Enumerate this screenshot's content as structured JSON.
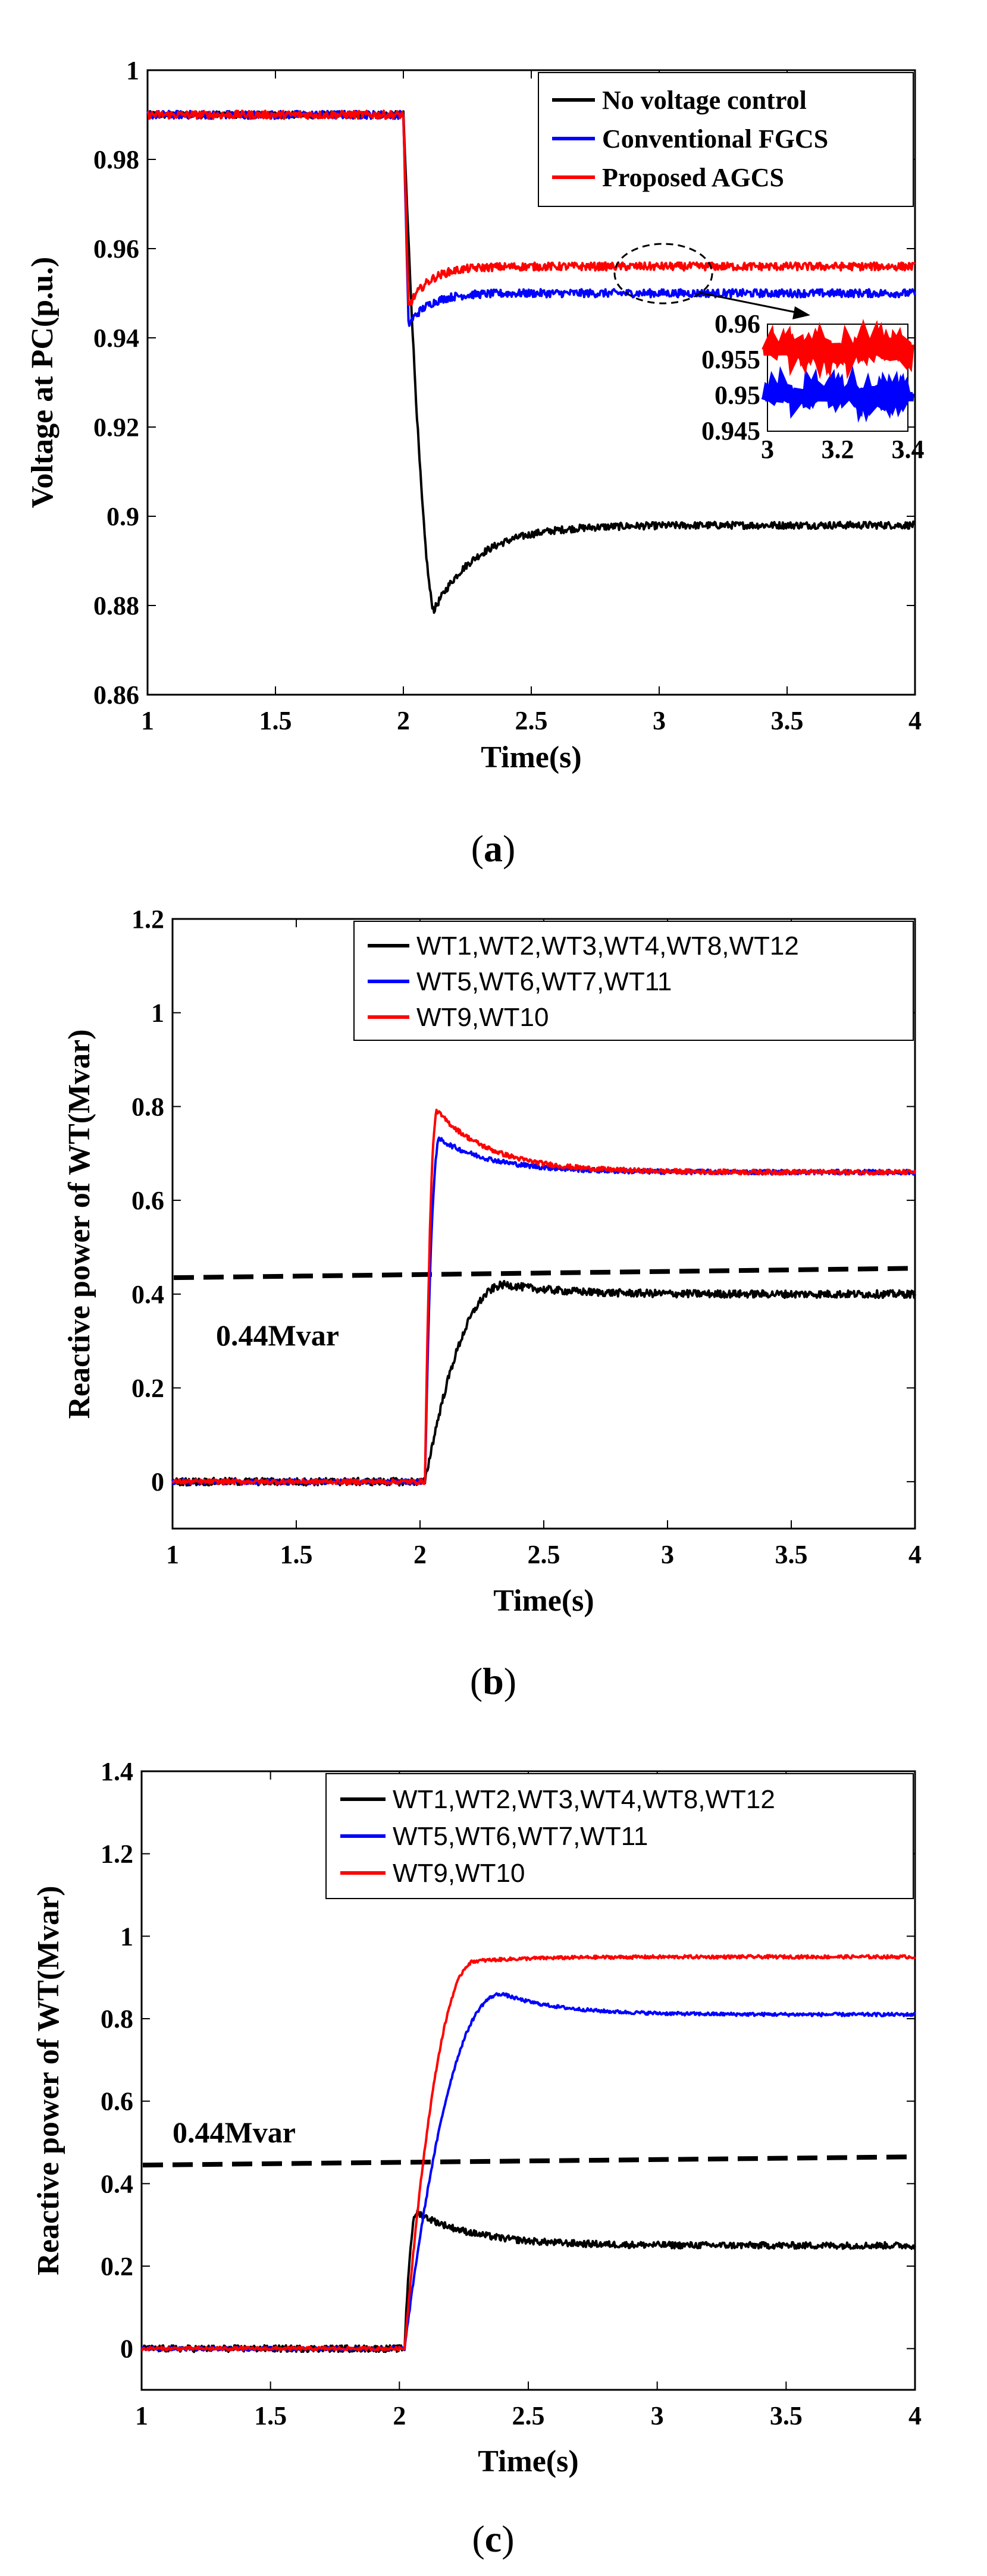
{
  "chart_data": [
    {
      "type": "line",
      "panel": "(a)",
      "caption_open": "(",
      "caption_letter": "a",
      "caption_close": ")",
      "title": "",
      "xlabel": "Time(s)",
      "ylabel": "Voltage at PC(p.u.)",
      "xlim": [
        1,
        4
      ],
      "ylim": [
        0.86,
        1.0
      ],
      "xticks": [
        1,
        1.5,
        2,
        2.5,
        3,
        3.5,
        4
      ],
      "xtick_labels": [
        "1",
        "1.5",
        "2",
        "2.5",
        "3",
        "3.5",
        "4"
      ],
      "yticks": [
        0.86,
        0.88,
        0.9,
        0.92,
        0.94,
        0.96,
        0.98,
        1.0
      ],
      "ytick_labels": [
        "0.86",
        "0.88",
        "0.9",
        "0.92",
        "0.94",
        "0.96",
        "0.98",
        "1"
      ],
      "legend_position": "top-right",
      "series": [
        {
          "name": "No voltage control",
          "color": "#000000",
          "shape": "dip",
          "pre": 0.99,
          "min": 0.879,
          "t_min": 2.12,
          "final": 0.898,
          "noise": 0.0008
        },
        {
          "name": "Conventional FGCS",
          "color": "#0000ff",
          "shape": "step",
          "pre": 0.99,
          "start": 0.943,
          "final": 0.95,
          "noise": 0.0009
        },
        {
          "name": "Proposed AGCS",
          "color": "#ff0000",
          "shape": "step",
          "pre": 0.99,
          "start": 0.947,
          "final": 0.956,
          "noise": 0.0009
        }
      ],
      "inset": {
        "xlim": [
          3,
          3.4
        ],
        "ylim": [
          0.945,
          0.96
        ],
        "xticks": [
          3,
          3.2,
          3.4
        ],
        "xtick_labels": [
          "3",
          "3.2",
          "3.4"
        ],
        "yticks": [
          0.945,
          0.95,
          0.955,
          0.96
        ],
        "ytick_labels": [
          "0.945",
          "0.95",
          "0.955",
          "0.96"
        ],
        "series": [
          {
            "name": "Conventional FGCS",
            "color": "#0000ff",
            "value": 0.95
          },
          {
            "name": "Proposed AGCS",
            "color": "#ff0000",
            "value": 0.9565
          }
        ]
      }
    },
    {
      "type": "line",
      "panel": "(b)",
      "caption_open": "(",
      "caption_letter": "b",
      "caption_close": ")",
      "title": "",
      "xlabel": "Time(s)",
      "ylabel": "Reactive power of WT(Mvar)",
      "xlim": [
        1,
        4
      ],
      "ylim": [
        -0.1,
        1.2
      ],
      "xticks": [
        1,
        1.5,
        2,
        2.5,
        3,
        3.5,
        4
      ],
      "xtick_labels": [
        "1",
        "1.5",
        "2",
        "2.5",
        "3",
        "3.5",
        "4"
      ],
      "yticks": [
        0,
        0.2,
        0.4,
        0.6,
        0.8,
        1.0,
        1.2
      ],
      "ytick_labels": [
        "0",
        "0.2",
        "0.4",
        "0.6",
        "0.8",
        "1",
        "1.2"
      ],
      "legend_position": "top-right",
      "reference_line": {
        "label": "0.44Mvar",
        "y_start": 0.435,
        "y_end": 0.455
      },
      "series": [
        {
          "name": "WT1,WT2,WT3,WT4,WT8,WT12",
          "color": "#000000",
          "shape": "rise",
          "pre": 0.0,
          "peak": 0.42,
          "t_peak": 2.35,
          "final": 0.4,
          "noise": 0.008
        },
        {
          "name": "WT5,WT6,WT7,WT11",
          "color": "#0000ff",
          "shape": "rise",
          "pre": 0.0,
          "peak": 0.73,
          "t_peak": 2.08,
          "final": 0.66,
          "noise": 0.005
        },
        {
          "name": "WT9,WT10",
          "color": "#ff0000",
          "shape": "rise",
          "pre": 0.0,
          "peak": 0.79,
          "t_peak": 2.07,
          "final": 0.66,
          "noise": 0.005
        }
      ]
    },
    {
      "type": "line",
      "panel": "(c)",
      "caption_open": "(",
      "caption_letter": "c",
      "caption_close": ")",
      "title": "",
      "xlabel": "Time(s)",
      "ylabel": "Reactive power of WT(Mvar)",
      "xlim": [
        1,
        4
      ],
      "ylim": [
        -0.1,
        1.4
      ],
      "xticks": [
        1,
        1.5,
        2,
        2.5,
        3,
        3.5,
        4
      ],
      "xtick_labels": [
        "1",
        "1.5",
        "2",
        "2.5",
        "3",
        "3.5",
        "4"
      ],
      "yticks": [
        0,
        0.2,
        0.4,
        0.6,
        0.8,
        1.0,
        1.2,
        1.4
      ],
      "ytick_labels": [
        "0",
        "0.2",
        "0.4",
        "0.6",
        "0.8",
        "1",
        "1.2",
        "1.4"
      ],
      "legend_position": "top-right",
      "reference_line": {
        "label": "0.44Mvar",
        "y_start": 0.445,
        "y_end": 0.465
      },
      "series": [
        {
          "name": "WT1,WT2,WT3,WT4,WT8,WT12",
          "color": "#000000",
          "shape": "rise",
          "pre": 0.0,
          "peak": 0.33,
          "t_peak": 2.07,
          "final": 0.25,
          "noise": 0.008
        },
        {
          "name": "WT5,WT6,WT7,WT11",
          "color": "#0000ff",
          "shape": "rise",
          "pre": 0.0,
          "peak": 0.86,
          "t_peak": 2.4,
          "final": 0.81,
          "noise": 0.004
        },
        {
          "name": "WT9,WT10",
          "color": "#ff0000",
          "shape": "rise",
          "pre": 0.0,
          "peak": 0.94,
          "t_peak": 2.3,
          "final": 0.95,
          "noise": 0.004
        }
      ]
    }
  ]
}
